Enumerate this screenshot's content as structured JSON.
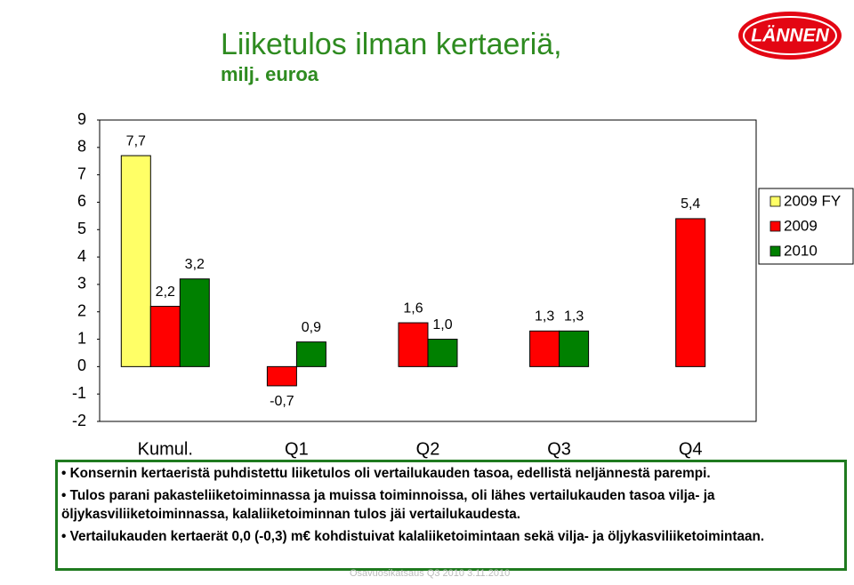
{
  "chart_data": {
    "type": "bar",
    "title": "Liiketulos ilman kertaeriä,",
    "subtitle": "milj. euroa",
    "categories": [
      "Kumul.",
      "Q1",
      "Q2",
      "Q3",
      "Q4"
    ],
    "series": [
      {
        "name": "2009 FY",
        "color": "#ffff66",
        "values": [
          7.7,
          null,
          null,
          null,
          null
        ],
        "value_labels": [
          "7,7",
          null,
          null,
          null,
          null
        ]
      },
      {
        "name": "2009",
        "color": "#ff0000",
        "values": [
          2.2,
          -0.7,
          1.6,
          1.3,
          5.4
        ],
        "value_labels": [
          "2,2",
          "-0,7",
          "1,6",
          "1,3",
          "5,4"
        ]
      },
      {
        "name": "2010",
        "color": "#008000",
        "values": [
          3.2,
          0.9,
          1.0,
          1.3,
          null
        ],
        "value_labels": [
          "3,2",
          "0,9",
          "1,0",
          "1,3",
          null
        ]
      }
    ],
    "ylim": [
      -2,
      9
    ],
    "yticks": [
      -2,
      -1,
      0,
      1,
      2,
      3,
      4,
      5,
      6,
      7,
      8,
      9
    ],
    "grid": false,
    "legend": "right"
  },
  "logo": "LÄNNEN",
  "bullets": [
    "Konsernin kertaeristä puhdistettu liiketulos oli vertailukauden tasoa, edellistä neljännestä parempi.",
    "Tulos parani pakasteliiketoiminnassa ja muissa toiminnoissa, oli lähes vertailukauden tasoa vilja- ja öljykasviliiketoiminnassa, kalaliiketoiminnan tulos jäi vertailukaudesta.",
    "Vertailukauden kertaerät  0,0 (-0,3) m€ kohdistuivat kalaliiketoimintaan sekä vilja- ja öljykasviliiketoimintaan."
  ],
  "footer": "Osavuosikatsaus Q3 2010     3.11.2010"
}
